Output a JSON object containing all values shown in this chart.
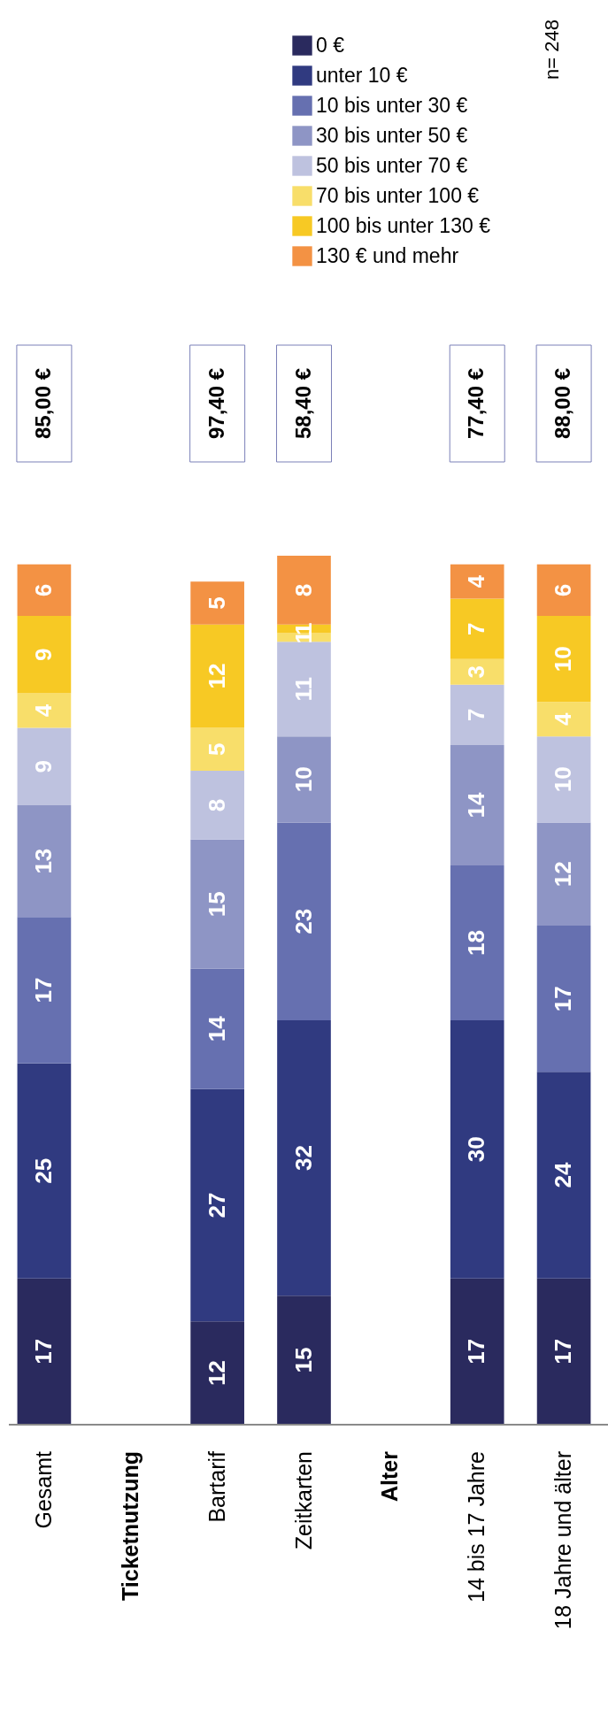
{
  "chart_data": {
    "type": "bar",
    "stacked": true,
    "data_labels": true,
    "legend": "top right",
    "categories": [
      "Gesamt",
      "Ticketnutzung",
      "Bartarif",
      "Zeitkarten",
      "Alter",
      "14 bis 17 Jahre",
      "18 Jahre und älter"
    ],
    "series": [
      {
        "name": "0 €",
        "color": "#2a2a5e",
        "values": [
          17,
          null,
          12,
          15,
          null,
          17,
          17
        ]
      },
      {
        "name": "unter 10 €",
        "color": "#303a80",
        "values": [
          25,
          null,
          27,
          32,
          null,
          30,
          24
        ]
      },
      {
        "name": "10 bis unter 30 €",
        "color": "#6670b0",
        "values": [
          17,
          null,
          14,
          23,
          null,
          18,
          17
        ]
      },
      {
        "name": "30 bis unter 50 €",
        "color": "#8e95c5",
        "values": [
          13,
          null,
          15,
          10,
          null,
          14,
          12
        ]
      },
      {
        "name": "50 bis unter 70 €",
        "color": "#bec2df",
        "values": [
          9,
          null,
          8,
          11,
          null,
          7,
          10
        ]
      },
      {
        "name": "70 bis unter 100 €",
        "color": "#f8de6a",
        "values": [
          4,
          null,
          5,
          1,
          null,
          3,
          4
        ]
      },
      {
        "name": "100 bis unter 130 €",
        "color": "#f7c924",
        "values": [
          9,
          null,
          12,
          1,
          null,
          7,
          10
        ]
      },
      {
        "name": "130 € und mehr",
        "color": "#f39244",
        "values": [
          6,
          null,
          5,
          8,
          null,
          4,
          6
        ]
      }
    ],
    "annotations": [
      "n= 248",
      "85,00 €",
      "97,40 €",
      "58,40 €",
      "77,40 €",
      "88,00 €"
    ]
  }
}
